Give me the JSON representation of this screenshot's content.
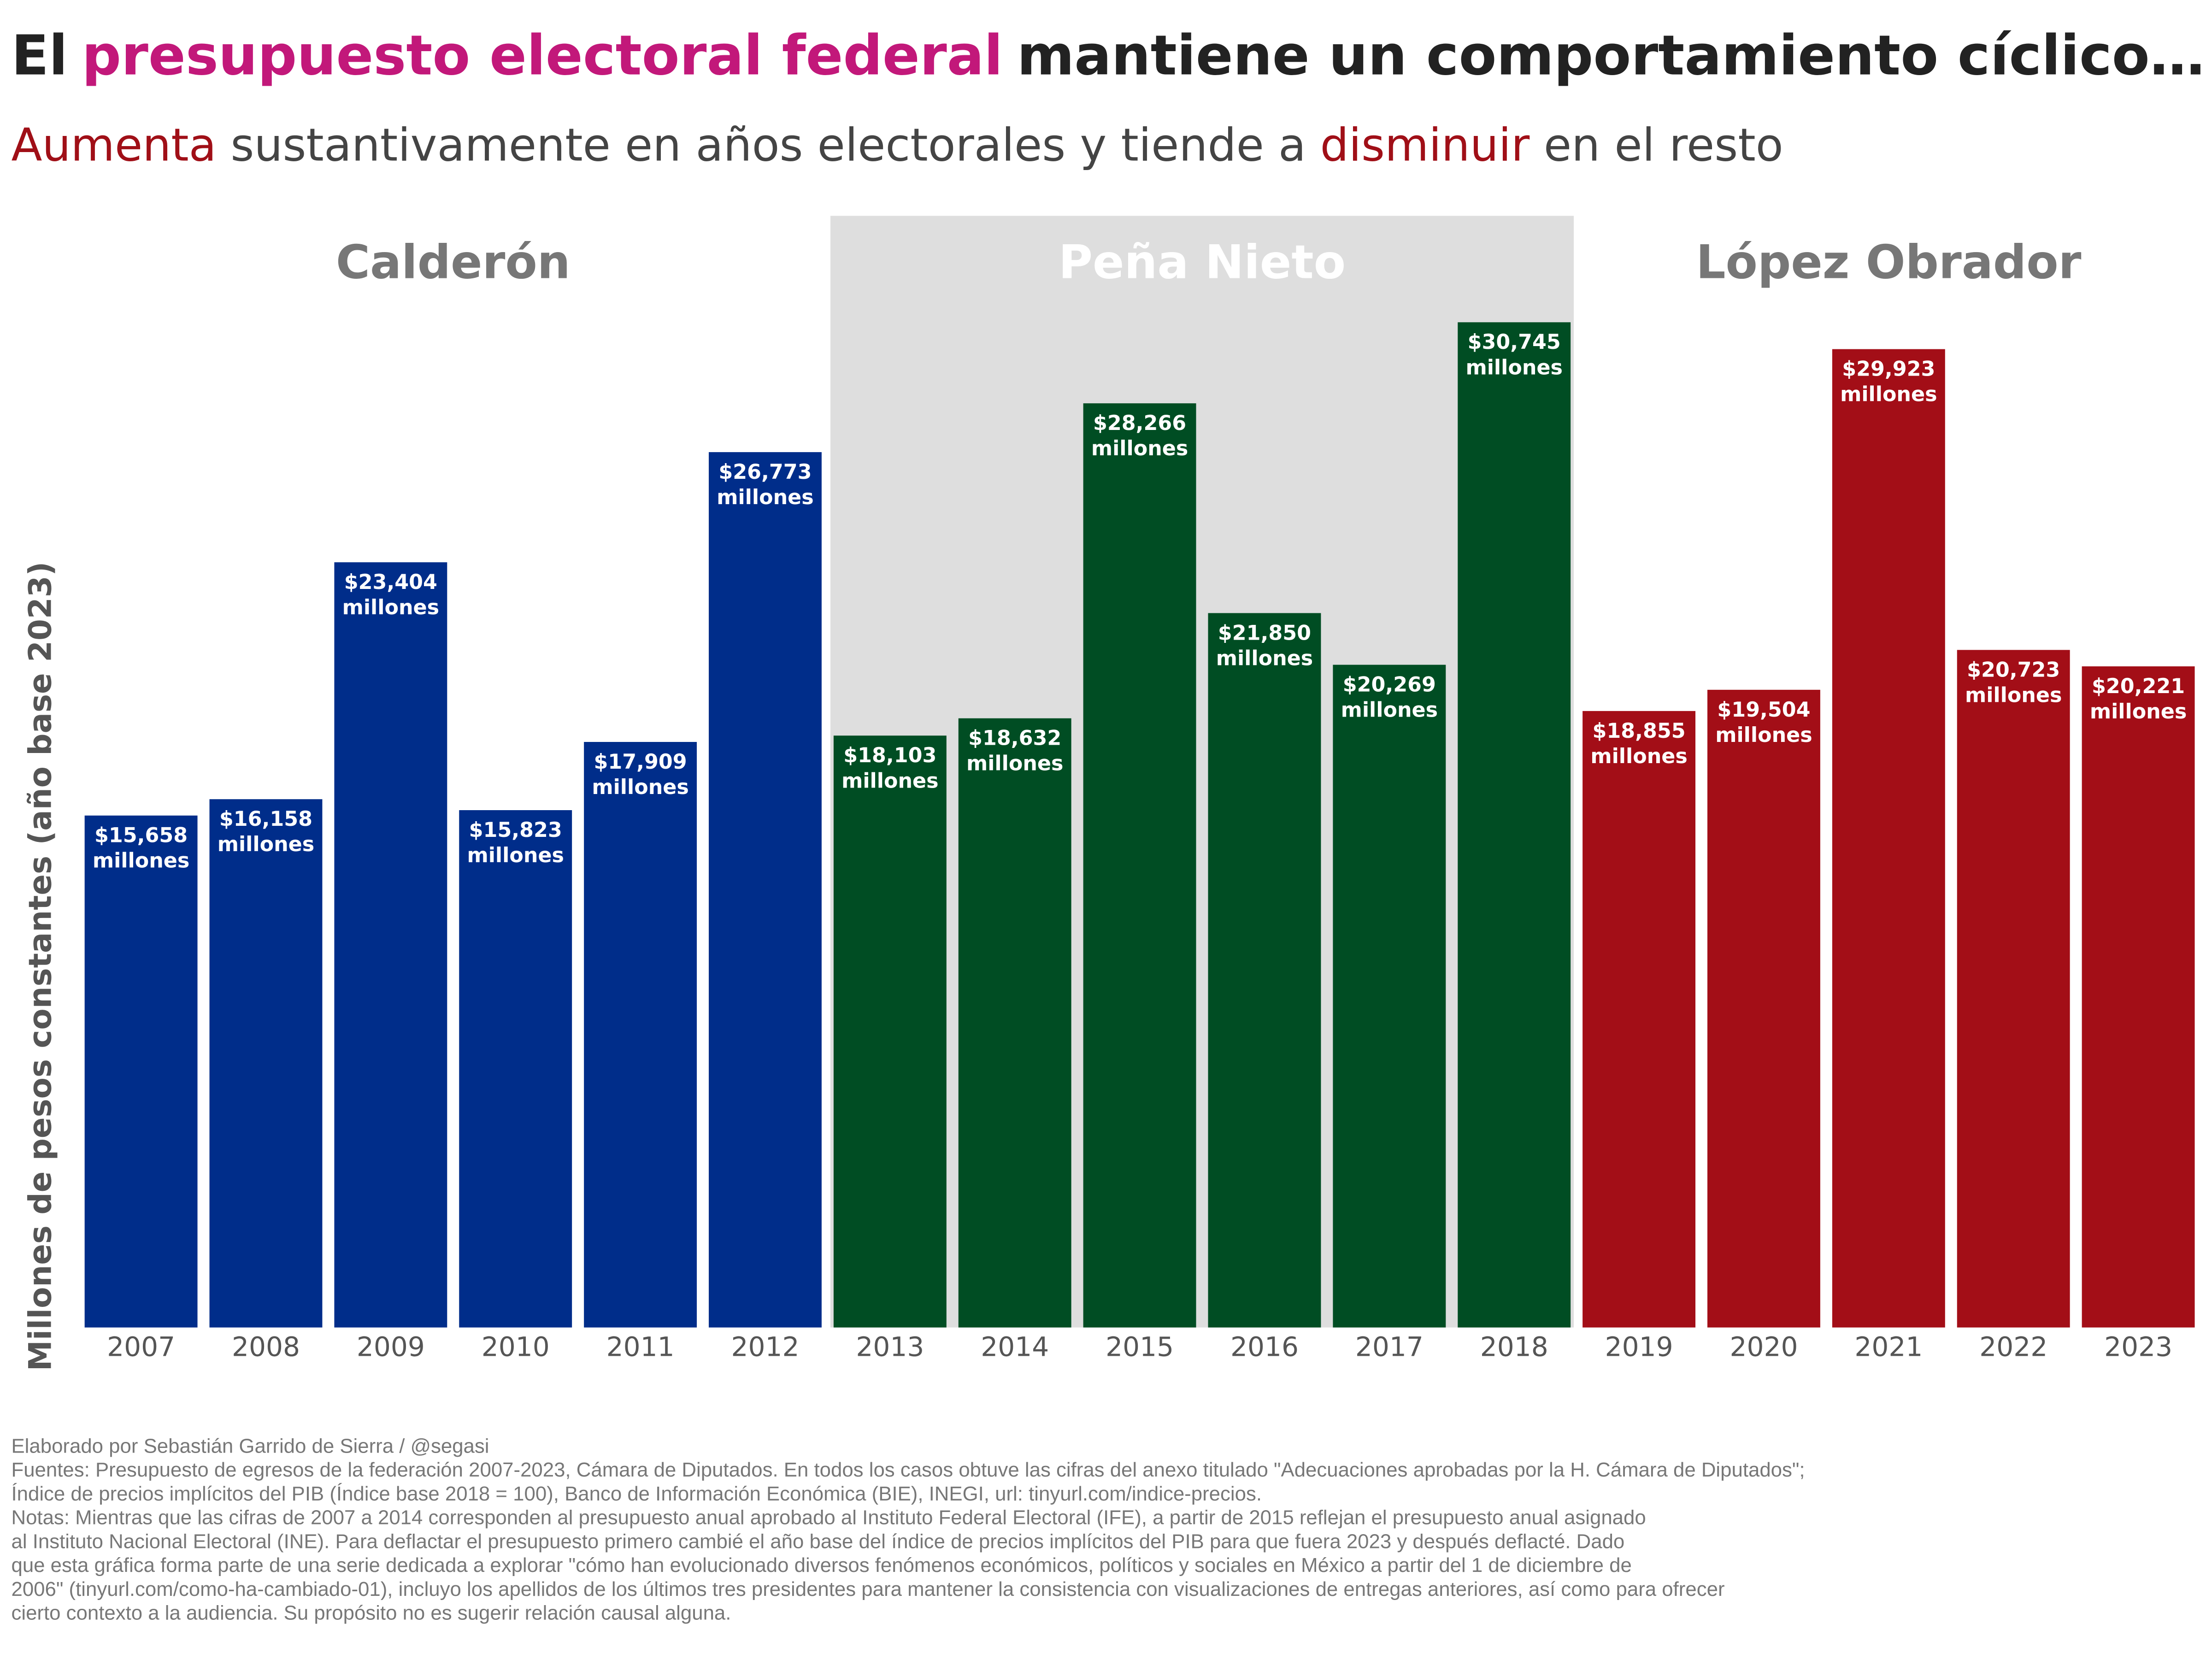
{
  "chart_data": {
    "type": "bar",
    "title": [
      "El",
      "presupuesto electoral federal",
      "mantiene un comportamiento cíclico…"
    ],
    "title_colors": [
      "#222222",
      "#c2187a",
      "#222222"
    ],
    "subtitle": [
      "Aumenta",
      "sustantivamente en años electorales y tiende a",
      "disminuir",
      "en el resto"
    ],
    "subtitle_colors": [
      "#a00f17",
      "#444444",
      "#a00f17",
      "#444444"
    ],
    "y_label": "Millones de pesos constantes (año base 2023)",
    "categories": [
      "2007",
      "2008",
      "2009",
      "2010",
      "2011",
      "2012",
      "2013",
      "2014",
      "2015",
      "2016",
      "2017",
      "2018",
      "2019",
      "2020",
      "2021",
      "2022",
      "2023"
    ],
    "ylim": [
      0,
      34000
    ],
    "series": [
      {
        "name": "Calderón",
        "color": "#002d8a",
        "shaded": false,
        "values": [
          15658,
          16158,
          23404,
          15823,
          17909,
          26773,
          null,
          null,
          null,
          null,
          null,
          null,
          null,
          null,
          null,
          null,
          null
        ],
        "value_labels": [
          "$15,658 millones",
          "$16,158 millones",
          "$23,404 millones",
          "$15,823 millones",
          "$17,909 millones",
          "$26,773 millones",
          null,
          null,
          null,
          null,
          null,
          null,
          null,
          null,
          null,
          null,
          null
        ]
      },
      {
        "name": "Peña Nieto",
        "color": "#004d23",
        "shaded": true,
        "values": [
          null,
          null,
          null,
          null,
          null,
          null,
          18103,
          18632,
          28266,
          21850,
          20269,
          30745,
          null,
          null,
          null,
          null,
          null
        ],
        "value_labels": [
          null,
          null,
          null,
          null,
          null,
          null,
          "$18,103 millones",
          "$18,632 millones",
          "$28,266 millones",
          "$21,850 millones",
          "$20,269 millones",
          "$30,745 millones",
          null,
          null,
          null,
          null,
          null
        ]
      },
      {
        "name": "López Obrador",
        "color": "#a30e17",
        "shaded": false,
        "values": [
          null,
          null,
          null,
          null,
          null,
          null,
          null,
          null,
          null,
          null,
          null,
          null,
          18855,
          19504,
          29923,
          20723,
          20221
        ],
        "value_labels": [
          null,
          null,
          null,
          null,
          null,
          null,
          null,
          null,
          null,
          null,
          null,
          null,
          "$18,855 millones",
          "$19,504 millones",
          "$29,923 millones",
          "$20,723 millones",
          "$20,221 millones"
        ]
      }
    ],
    "footnotes": [
      "Elaborado por Sebastián Garrido de Sierra / @segasi",
      "Fuentes: Presupuesto de egresos de la federación 2007-2023, Cámara de Diputados. En todos los casos obtuve las cifras del anexo titulado \"Adecuaciones aprobadas por la H. Cámara de Diputados\";",
      "Índice de precios implícitos del PIB (Índice base 2018 = 100), Banco de Información Económica (BIE), INEGI, url: tinyurl.com/indice-precios.",
      "Notas: Mientras que las cifras de 2007 a 2014 corresponden al presupuesto anual aprobado al Instituto Federal Electoral (IFE), a partir de 2015 reflejan el presupuesto anual asignado",
      "al Instituto Nacional Electoral (INE). Para deflactar el presupuesto primero cambié el año base del índice de precios implícitos del PIB para que fuera 2023 y después deflacté. Dado",
      "que esta gráfica forma parte de una serie dedicada a explorar \"cómo han evolucionado diversos fenómenos económicos, políticos y sociales en México a partir del 1 de diciembre de",
      "2006\" (tinyurl.com/como-ha-cambiado-01), incluyo los apellidos de los últimos tres presidentes para mantener la consistencia con visualizaciones de entregas anteriores, así como para ofrecer",
      "cierto contexto a la audiencia. Su propósito no es sugerir relación causal alguna."
    ]
  }
}
